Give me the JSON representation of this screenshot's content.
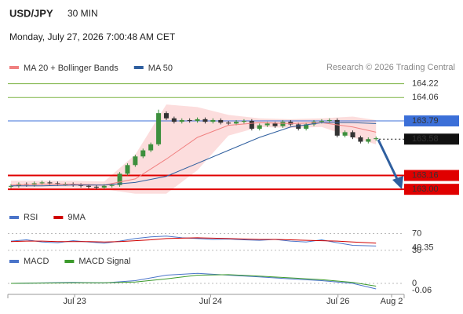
{
  "chart_data": {
    "type": "candlestick",
    "title": "USD/JPY",
    "timeframe": "30 MIN",
    "subtitle": "Monday, July 27, 2026 7:00:48 AM CET",
    "credit": "Research © 2026 Trading Central",
    "legend": [
      {
        "name": "MA 20 + Bollinger Bands",
        "color": "#f08080"
      },
      {
        "name": "MA 50",
        "color": "#2f5f9f"
      }
    ],
    "ylim": [
      162.92,
      164.28
    ],
    "xlim": [
      -0.3,
      50.2
    ],
    "xticks": [
      {
        "value": 8.2,
        "label": "Jul 23"
      },
      {
        "value": 25.7,
        "label": "Jul 24"
      },
      {
        "value": 42.1,
        "label": "Jul 26"
      },
      {
        "value": 49,
        "label": "Aug 2"
      }
    ],
    "bull_color": "#3d8f3d",
    "bear_color": "#333333",
    "candles": [
      [
        163.03,
        163.06,
        163.01,
        163.04
      ],
      [
        163.04,
        163.08,
        163.02,
        163.06
      ],
      [
        163.06,
        163.08,
        163.03,
        163.05
      ],
      [
        163.05,
        163.09,
        163.03,
        163.07
      ],
      [
        163.07,
        163.1,
        163.05,
        163.08
      ],
      [
        163.08,
        163.1,
        163.05,
        163.07
      ],
      [
        163.07,
        163.09,
        163.04,
        163.06
      ],
      [
        163.06,
        163.08,
        163.04,
        163.06
      ],
      [
        163.06,
        163.08,
        163.03,
        163.05
      ],
      [
        163.05,
        163.07,
        163.02,
        163.04
      ],
      [
        163.04,
        163.06,
        163.01,
        163.03
      ],
      [
        163.03,
        163.05,
        163.0,
        163.02
      ],
      [
        163.02,
        163.06,
        163.0,
        163.04
      ],
      [
        163.04,
        163.07,
        163.02,
        163.05
      ],
      [
        163.05,
        163.2,
        163.03,
        163.18
      ],
      [
        163.18,
        163.3,
        163.16,
        163.28
      ],
      [
        163.28,
        163.4,
        163.26,
        163.38
      ],
      [
        163.38,
        163.47,
        163.36,
        163.45
      ],
      [
        163.45,
        163.54,
        163.43,
        163.52
      ],
      [
        163.52,
        163.92,
        163.5,
        163.88
      ],
      [
        163.88,
        163.9,
        163.8,
        163.82
      ],
      [
        163.82,
        163.84,
        163.76,
        163.78
      ],
      [
        163.78,
        163.82,
        163.76,
        163.8
      ],
      [
        163.8,
        163.82,
        163.77,
        163.79
      ],
      [
        163.79,
        163.83,
        163.77,
        163.81
      ],
      [
        163.81,
        163.83,
        163.76,
        163.78
      ],
      [
        163.78,
        163.82,
        163.76,
        163.8
      ],
      [
        163.8,
        163.82,
        163.75,
        163.77
      ],
      [
        163.77,
        163.79,
        163.74,
        163.76
      ],
      [
        163.76,
        163.8,
        163.74,
        163.78
      ],
      [
        163.78,
        163.81,
        163.76,
        163.79
      ],
      [
        163.79,
        163.81,
        163.68,
        163.7
      ],
      [
        163.7,
        163.76,
        163.68,
        163.74
      ],
      [
        163.74,
        163.78,
        163.72,
        163.76
      ],
      [
        163.76,
        163.78,
        163.71,
        163.73
      ],
      [
        163.73,
        163.8,
        163.71,
        163.78
      ],
      [
        163.78,
        163.8,
        163.73,
        163.75
      ],
      [
        163.75,
        163.77,
        163.68,
        163.7
      ],
      [
        163.7,
        163.77,
        163.68,
        163.75
      ],
      [
        163.75,
        163.8,
        163.73,
        163.78
      ],
      [
        163.78,
        163.81,
        163.76,
        163.79
      ],
      [
        163.79,
        163.82,
        163.77,
        163.8
      ],
      [
        163.8,
        163.82,
        163.6,
        163.62
      ],
      [
        163.62,
        163.68,
        163.6,
        163.66
      ],
      [
        163.66,
        163.68,
        163.58,
        163.6
      ],
      [
        163.6,
        163.62,
        163.53,
        163.55
      ],
      [
        163.55,
        163.6,
        163.53,
        163.58
      ],
      [
        163.58,
        163.61,
        163.56,
        163.59
      ]
    ],
    "bands": {
      "x": [
        0,
        4,
        8,
        12,
        16,
        20,
        24,
        28,
        32,
        36,
        40,
        44,
        47
      ],
      "upper": [
        163.1,
        163.1,
        163.1,
        163.09,
        163.4,
        163.98,
        163.95,
        163.86,
        163.82,
        163.81,
        163.82,
        163.84,
        163.8
      ],
      "lower": [
        163.01,
        163.02,
        163.02,
        163.0,
        162.95,
        162.95,
        163.22,
        163.62,
        163.72,
        163.71,
        163.72,
        163.6,
        163.52
      ],
      "fill": "#fbd5d5"
    },
    "series": [
      {
        "name": "MA 20",
        "color": "#f08080",
        "x": [
          0,
          4,
          8,
          12,
          16,
          20,
          24,
          28,
          32,
          36,
          40,
          44,
          47
        ],
        "values": [
          163.05,
          163.06,
          163.06,
          163.05,
          163.12,
          163.35,
          163.6,
          163.74,
          163.77,
          163.76,
          163.77,
          163.72,
          163.66
        ]
      },
      {
        "name": "MA 50",
        "color": "#2f5f9f",
        "x": [
          0,
          4,
          8,
          12,
          16,
          20,
          24,
          28,
          32,
          36,
          40,
          44,
          47
        ],
        "values": [
          163.04,
          163.04,
          163.05,
          163.05,
          163.08,
          163.15,
          163.3,
          163.45,
          163.6,
          163.72,
          163.77,
          163.77,
          163.76
        ]
      }
    ],
    "levels": [
      {
        "value": 164.22,
        "color": "#7cb342",
        "style": "thin",
        "box": false
      },
      {
        "value": 164.06,
        "color": "#7cb342",
        "style": "thin",
        "box": false
      },
      {
        "value": 163.79,
        "color": "#3b6fd8",
        "style": "solid",
        "box": true
      },
      {
        "value": 163.58,
        "color": "#111111",
        "style": "dotted",
        "box": true
      },
      {
        "value": 163.16,
        "color": "#e00000",
        "style": "thick",
        "box": true
      },
      {
        "value": 163,
        "label": "163.00",
        "color": "#e00000",
        "style": "thick",
        "box": true
      }
    ],
    "rsi": {
      "legend": [
        {
          "name": "RSI",
          "color": "#4a74c9"
        },
        {
          "name": "9MA",
          "color": "#d00000"
        }
      ],
      "ylim": [
        28,
        84
      ],
      "yticks": [
        30,
        70
      ],
      "x": [
        0,
        2,
        4,
        6,
        8,
        10,
        12,
        14,
        16,
        18,
        20,
        22,
        24,
        26,
        28,
        30,
        32,
        34,
        36,
        38,
        40,
        42,
        44,
        47
      ],
      "values": [
        52,
        55,
        50,
        48,
        53,
        50,
        47,
        52,
        58,
        62,
        64,
        60,
        58,
        56,
        57,
        55,
        54,
        56,
        52,
        50,
        55,
        48,
        42,
        40.35
      ],
      "ma": [
        51,
        52,
        52,
        51,
        51,
        51,
        50,
        51,
        53,
        55,
        58,
        59,
        60,
        59,
        58,
        57,
        56,
        56,
        55,
        54,
        53,
        52,
        50,
        47
      ]
    },
    "macd": {
      "legend": [
        {
          "name": "MACD",
          "color": "#4a74c9"
        },
        {
          "name": "MACD Signal",
          "color": "#3c9a2c"
        }
      ],
      "ylim": [
        -0.12,
        0.18
      ],
      "yticks": [
        0
      ],
      "x": [
        0,
        4,
        8,
        12,
        16,
        20,
        24,
        28,
        32,
        36,
        40,
        44,
        47
      ],
      "values": [
        0.0,
        0.005,
        0.01,
        0.005,
        0.03,
        0.09,
        0.11,
        0.09,
        0.07,
        0.05,
        0.03,
        0.0,
        -0.06
      ],
      "signal": [
        0.0,
        0.003,
        0.007,
        0.007,
        0.015,
        0.05,
        0.09,
        0.095,
        0.08,
        0.06,
        0.04,
        0.01,
        -0.03
      ]
    }
  }
}
